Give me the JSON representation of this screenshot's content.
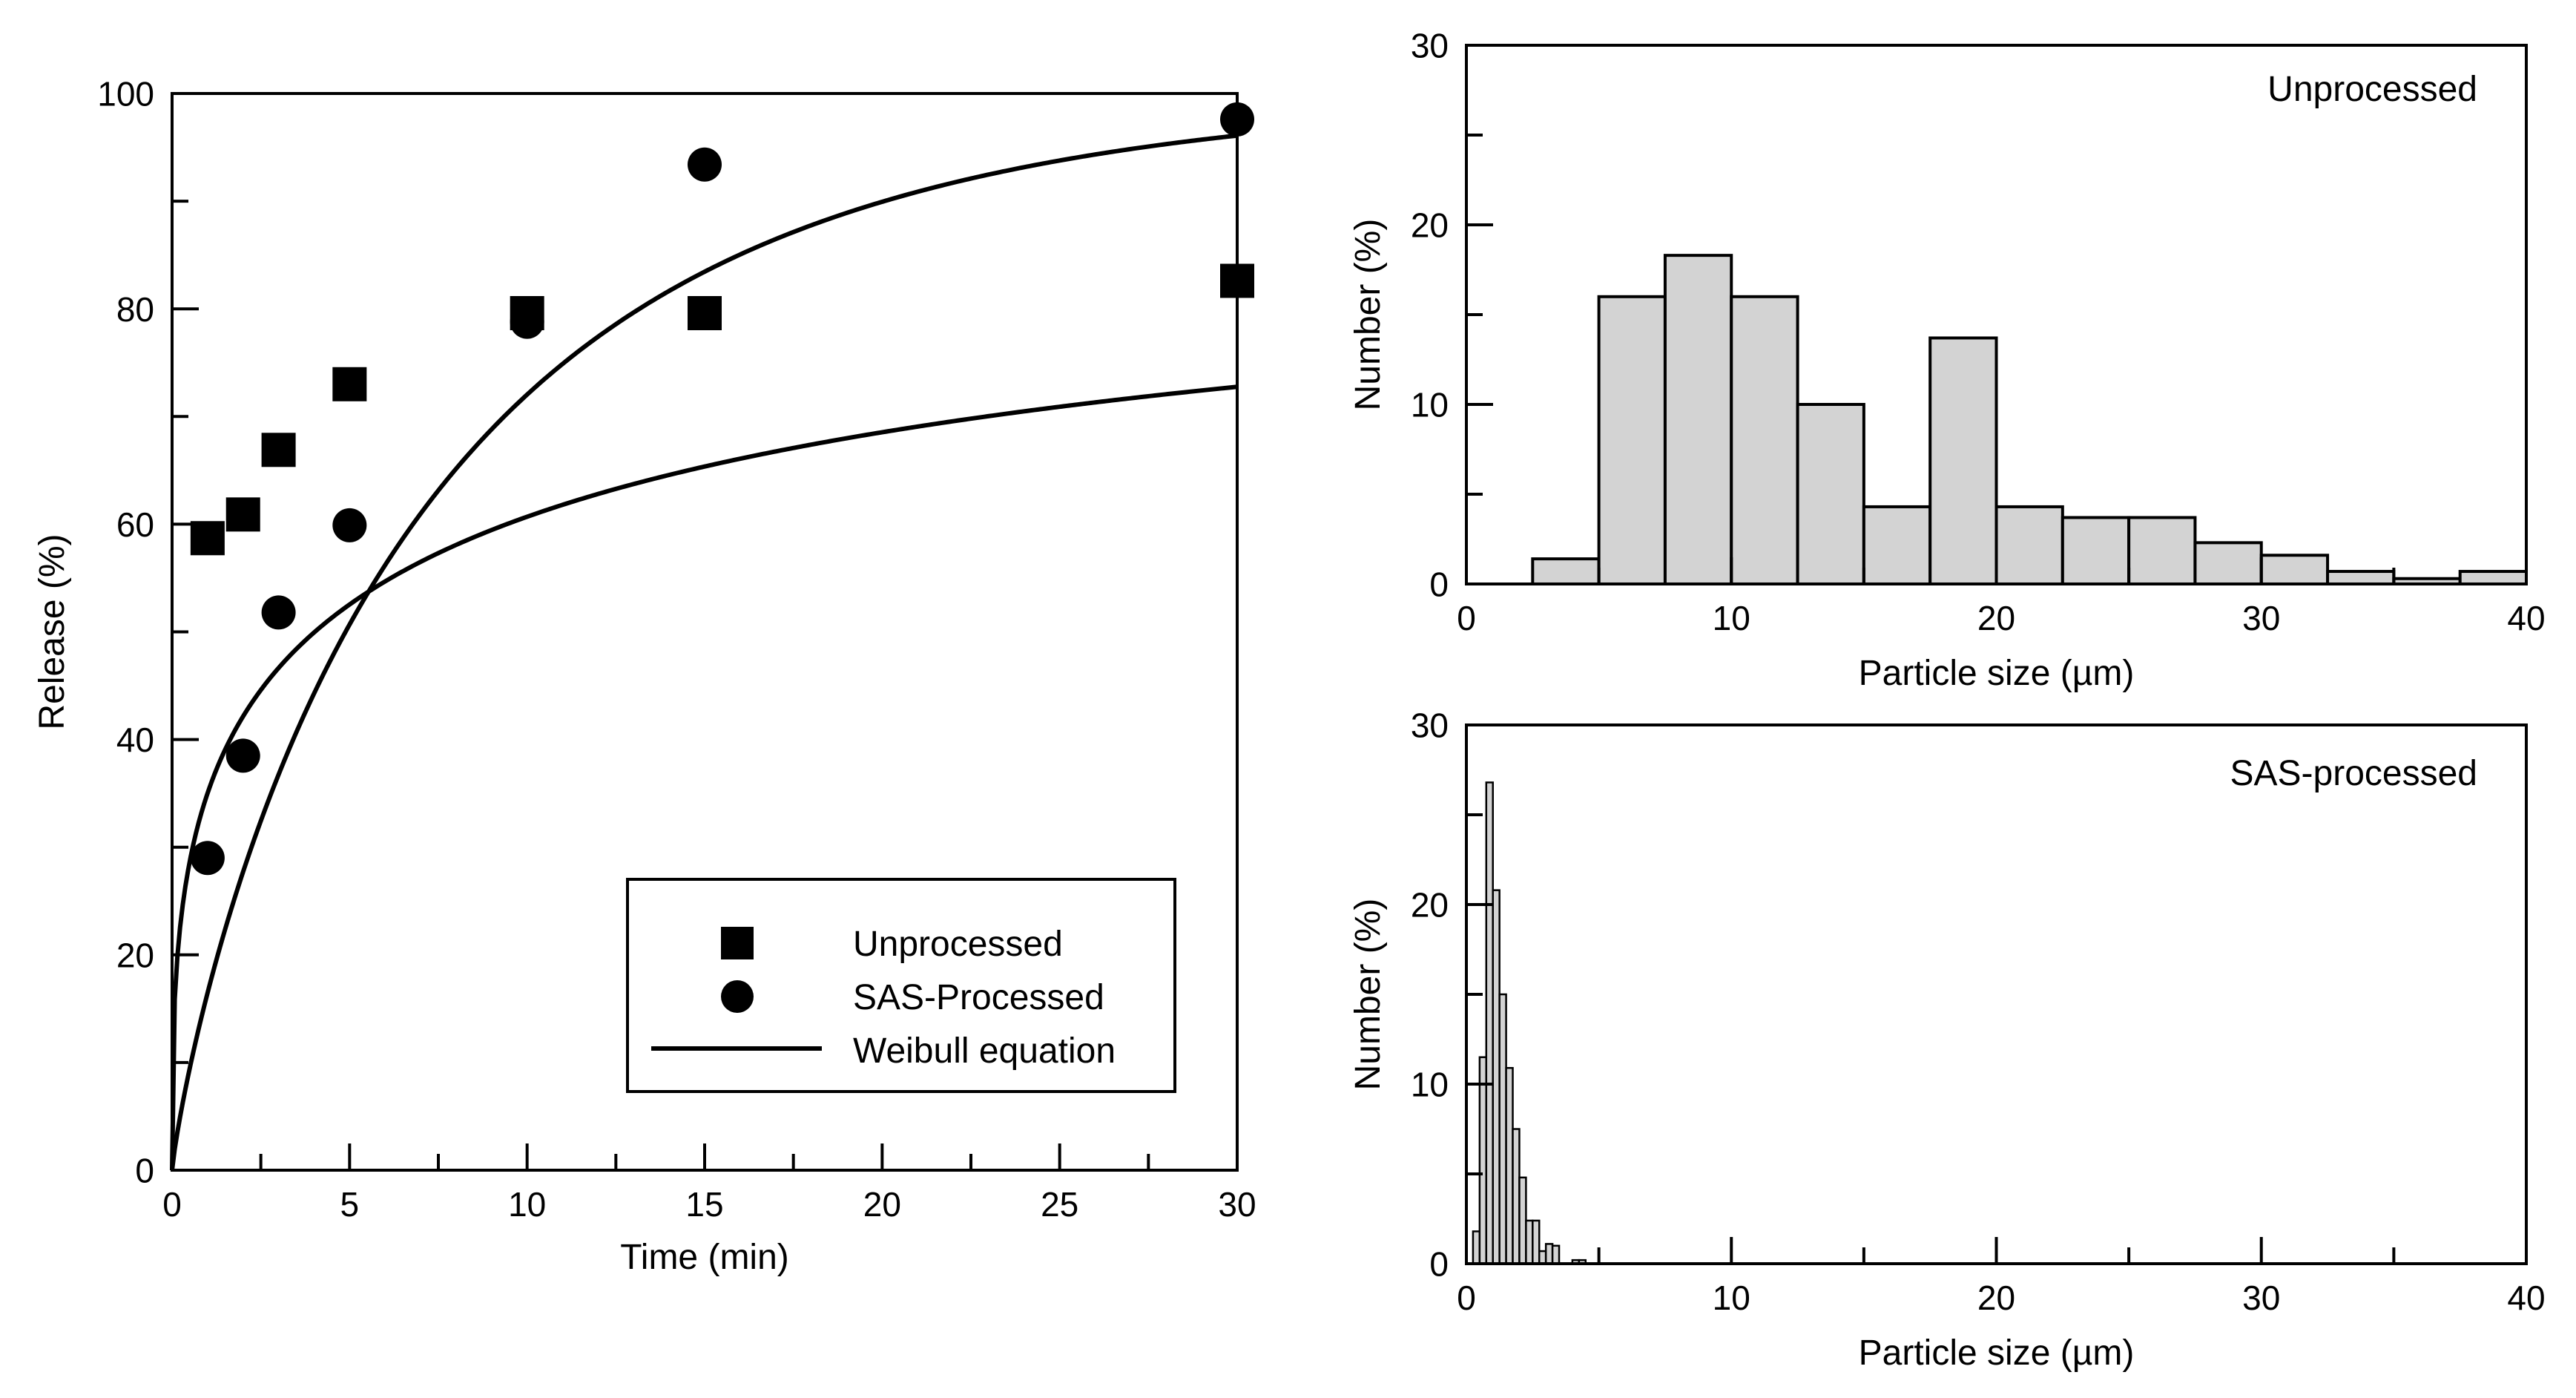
{
  "colors": {
    "ink": "#000000",
    "bar_fill": "#d3d3d3",
    "background": "#ffffff"
  },
  "chart_data": [
    {
      "type": "scatter",
      "id": "release",
      "title": "",
      "xlabel": "Time (min)",
      "ylabel": "Release (%)",
      "xlim": [
        0,
        30
      ],
      "ylim": [
        0,
        100
      ],
      "x_major_ticks": [
        0,
        5,
        10,
        15,
        20,
        25,
        30
      ],
      "x_minor_ticks": [
        2.5,
        7.5,
        12.5,
        17.5,
        22.5,
        27.5
      ],
      "y_major_ticks": [
        0,
        20,
        40,
        60,
        80,
        100
      ],
      "y_minor_ticks": [
        10,
        30,
        50,
        70,
        90
      ],
      "grid": false,
      "legend_position": "bottom-right",
      "legend": [
        "Unprocessed",
        "SAS-Processed",
        "Weibull equation"
      ],
      "series": [
        {
          "name": "Unprocessed",
          "marker": "square",
          "x": [
            1,
            2,
            3,
            5,
            10,
            15,
            30
          ],
          "y": [
            58.7,
            60.9,
            66.9,
            73.0,
            79.6,
            79.6,
            82.6
          ]
        },
        {
          "name": "SAS-Processed",
          "marker": "circle",
          "x": [
            1,
            2,
            3,
            5,
            10,
            15,
            30
          ],
          "y": [
            29.0,
            38.5,
            51.8,
            59.9,
            78.8,
            93.4,
            97.6
          ]
        }
      ],
      "fits": [
        {
          "name": "Weibull equation",
          "fits_series": "Unprocessed",
          "model": "weibull",
          "max": 89.0,
          "scale": 0.5,
          "shape": 0.36
        },
        {
          "name": "Weibull equation",
          "fits_series": "SAS-Processed",
          "model": "weibull",
          "max": 100.0,
          "scale": 0.18,
          "shape": 0.85
        }
      ]
    },
    {
      "type": "histogram",
      "id": "unprocessed-hist",
      "annotation": "Unprocessed",
      "xlabel": "Particle size (µm)",
      "ylabel": "Number (%)",
      "xlim": [
        0,
        40
      ],
      "ylim": [
        0,
        30
      ],
      "x_major_ticks": [
        0,
        10,
        20,
        30,
        40
      ],
      "x_minor_ticks": [
        5,
        15,
        25,
        35
      ],
      "y_major_ticks": [
        0,
        10,
        20,
        30
      ],
      "y_minor_ticks": [
        5,
        15,
        25
      ],
      "grid": false,
      "bin_edges": [
        2.5,
        5,
        7.5,
        10,
        12.5,
        15,
        17.5,
        20,
        22.5,
        25,
        27.5,
        30,
        32.5,
        35,
        37.5,
        40
      ],
      "values": [
        1.4,
        16.0,
        18.3,
        16.0,
        10.0,
        4.3,
        13.7,
        4.3,
        3.7,
        3.7,
        2.3,
        1.6,
        0.7,
        0.3,
        0.7
      ]
    },
    {
      "type": "histogram",
      "id": "sas-hist",
      "annotation": "SAS-processed",
      "xlabel": "Particle size (µm)",
      "ylabel": "Number (%)",
      "xlim": [
        0,
        40
      ],
      "ylim": [
        0,
        30
      ],
      "x_major_ticks": [
        0,
        10,
        20,
        30,
        40
      ],
      "x_minor_ticks": [
        5,
        15,
        25,
        35
      ],
      "y_major_ticks": [
        0,
        10,
        20,
        30
      ],
      "y_minor_ticks": [
        5,
        15,
        25
      ],
      "grid": false,
      "bin_edges": [
        0.25,
        0.5,
        0.75,
        1.0,
        1.25,
        1.5,
        1.75,
        2.0,
        2.25,
        2.5,
        2.75,
        3.0,
        3.25,
        3.5,
        3.75,
        4.0,
        4.25,
        4.5
      ],
      "values": [
        1.8,
        11.5,
        26.8,
        20.8,
        15.0,
        10.9,
        7.5,
        4.8,
        2.4,
        2.4,
        0.7,
        1.1,
        1.0,
        0.0,
        0.0,
        0.2,
        0.2
      ]
    }
  ]
}
